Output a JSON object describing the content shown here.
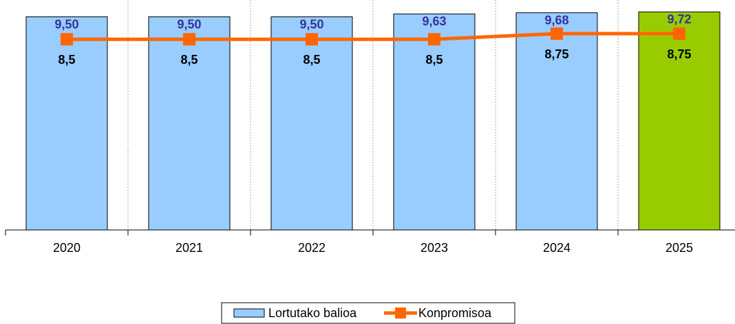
{
  "chart_data": {
    "type": "bar",
    "categories": [
      "2020",
      "2021",
      "2022",
      "2023",
      "2024",
      "2025"
    ],
    "ylim": [
      0,
      10.25
    ],
    "series": [
      {
        "name": "Lortutako balioa",
        "type": "bar",
        "color": "#99ccff",
        "colors": [
          "#99ccff",
          "#99ccff",
          "#99ccff",
          "#99ccff",
          "#99ccff",
          "#99cc00"
        ],
        "values": [
          9.5,
          9.5,
          9.5,
          9.63,
          9.68,
          9.72
        ],
        "value_labels": [
          "9,50",
          "9,50",
          "9,50",
          "9,63",
          "9,68",
          "9,72"
        ],
        "label_color": "#333399"
      },
      {
        "name": "Konpromisoa",
        "type": "line",
        "color": "#ff6600",
        "values": [
          8.5,
          8.5,
          8.5,
          8.5,
          8.75,
          8.75
        ],
        "value_labels": [
          "8,5",
          "8,5",
          "8,5",
          "8,5",
          "8,75",
          "8,75"
        ],
        "label_color": "#000000"
      }
    ],
    "legend": "bottom"
  }
}
